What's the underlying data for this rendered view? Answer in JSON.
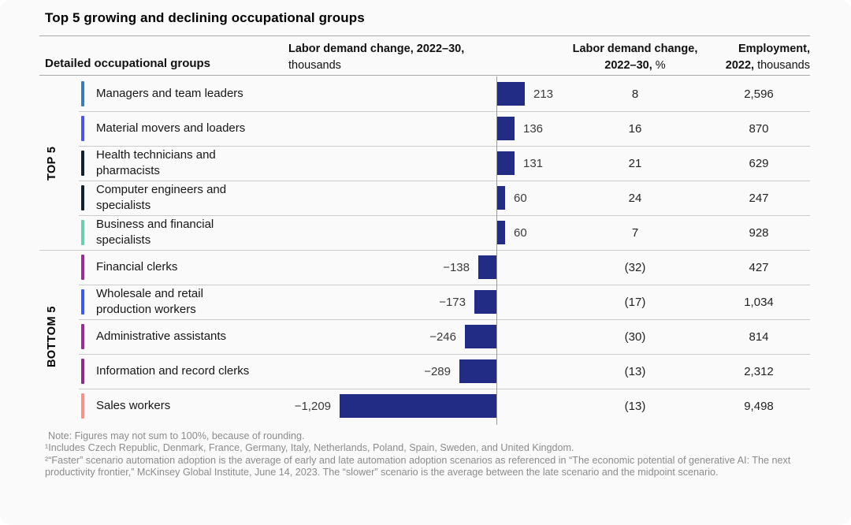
{
  "title": "Top 5 growing and declining occupational groups",
  "columns": {
    "groups": "Detailed occupational groups",
    "demand_abs_line1": "Labor demand change, 2022–30,",
    "demand_abs_line2": "thousands",
    "demand_pct_line1": "Labor demand change,",
    "demand_pct_line2_bold": "2022–30,",
    "demand_pct_line2_unit": "%",
    "emp_line1": "Employment,",
    "emp_line2_bold": "2022,",
    "emp_line2_unit": "thousands"
  },
  "sections": {
    "top": "TOP 5",
    "bottom": "BOTTOM 5"
  },
  "colors": {
    "bar": "#232c84",
    "axis": "#9a9a9a",
    "background": "#fafafa"
  },
  "chart_data": {
    "type": "bar",
    "orientation": "horizontal",
    "title": "Top 5 growing and declining occupational groups",
    "value_unit": "thousands",
    "baseline": 0,
    "rows": [
      {
        "section": "TOP 5",
        "section_start": false,
        "label": "Managers and team leaders",
        "tick_color": "#3b7bb8",
        "demand_thousands": 213,
        "demand_label": "213",
        "demand_pct_label": "8",
        "employment_label": "2,596"
      },
      {
        "section": "TOP 5",
        "section_start": false,
        "label": "Material movers and loaders",
        "tick_color": "#4c55e5",
        "demand_thousands": 136,
        "demand_label": "136",
        "demand_pct_label": "16",
        "employment_label": "870"
      },
      {
        "section": "TOP 5",
        "section_start": false,
        "label": "Health technicians and\npharmacists",
        "tick_color": "#141f2c",
        "demand_thousands": 131,
        "demand_label": "131",
        "demand_pct_label": "21",
        "employment_label": "629"
      },
      {
        "section": "TOP 5",
        "section_start": false,
        "label": "Computer engineers and\nspecialists",
        "tick_color": "#141f2c",
        "demand_thousands": 60,
        "demand_label": "60",
        "demand_pct_label": "24",
        "employment_label": "247"
      },
      {
        "section": "TOP 5",
        "section_start": false,
        "label": "Business and financial\nspecialists",
        "tick_color": "#6ccdb2",
        "demand_thousands": 60,
        "demand_label": "60",
        "demand_pct_label": "7",
        "employment_label": "928"
      },
      {
        "section": "BOTTOM 5",
        "section_start": true,
        "label": "Financial clerks",
        "tick_color": "#96308f",
        "demand_thousands": -138,
        "demand_label": "−138",
        "demand_pct_label": "(32)",
        "employment_label": "427"
      },
      {
        "section": "BOTTOM 5",
        "section_start": false,
        "label": "Wholesale and retail\nproduction workers",
        "tick_color": "#3b5bea",
        "demand_thousands": -173,
        "demand_label": "−173",
        "demand_pct_label": "(17)",
        "employment_label": "1,034"
      },
      {
        "section": "BOTTOM 5",
        "section_start": false,
        "label": "Administrative assistants",
        "tick_color": "#96308f",
        "demand_thousands": -246,
        "demand_label": "−246",
        "demand_pct_label": "(30)",
        "employment_label": "814"
      },
      {
        "section": "BOTTOM 5",
        "section_start": false,
        "label": "Information and record clerks",
        "tick_color": "#8e2d87",
        "demand_thousands": -289,
        "demand_label": "−289",
        "demand_pct_label": "(13)",
        "employment_label": "2,312"
      },
      {
        "section": "BOTTOM 5",
        "section_start": false,
        "label": "Sales workers",
        "tick_color": "#f2938c",
        "demand_thousands": -1209,
        "demand_label": "−1,209",
        "demand_pct_label": "(13)",
        "employment_label": "9,498"
      }
    ]
  },
  "footnotes": [
    "Note: Figures may not sum to 100%, because of rounding.",
    "¹Includes Czech Republic, Denmark, France, Germany, Italy, Netherlands, Poland, Spain, Sweden, and United Kingdom.",
    "²“Faster” scenario automation adoption is the average of early and late automation adoption scenarios as referenced in “The economic potential of generative AI: The next productivity frontier,” McKinsey Global Institute, June 14, 2023. The “slower” scenario is the average between the late scenario and the midpoint scenario."
  ]
}
